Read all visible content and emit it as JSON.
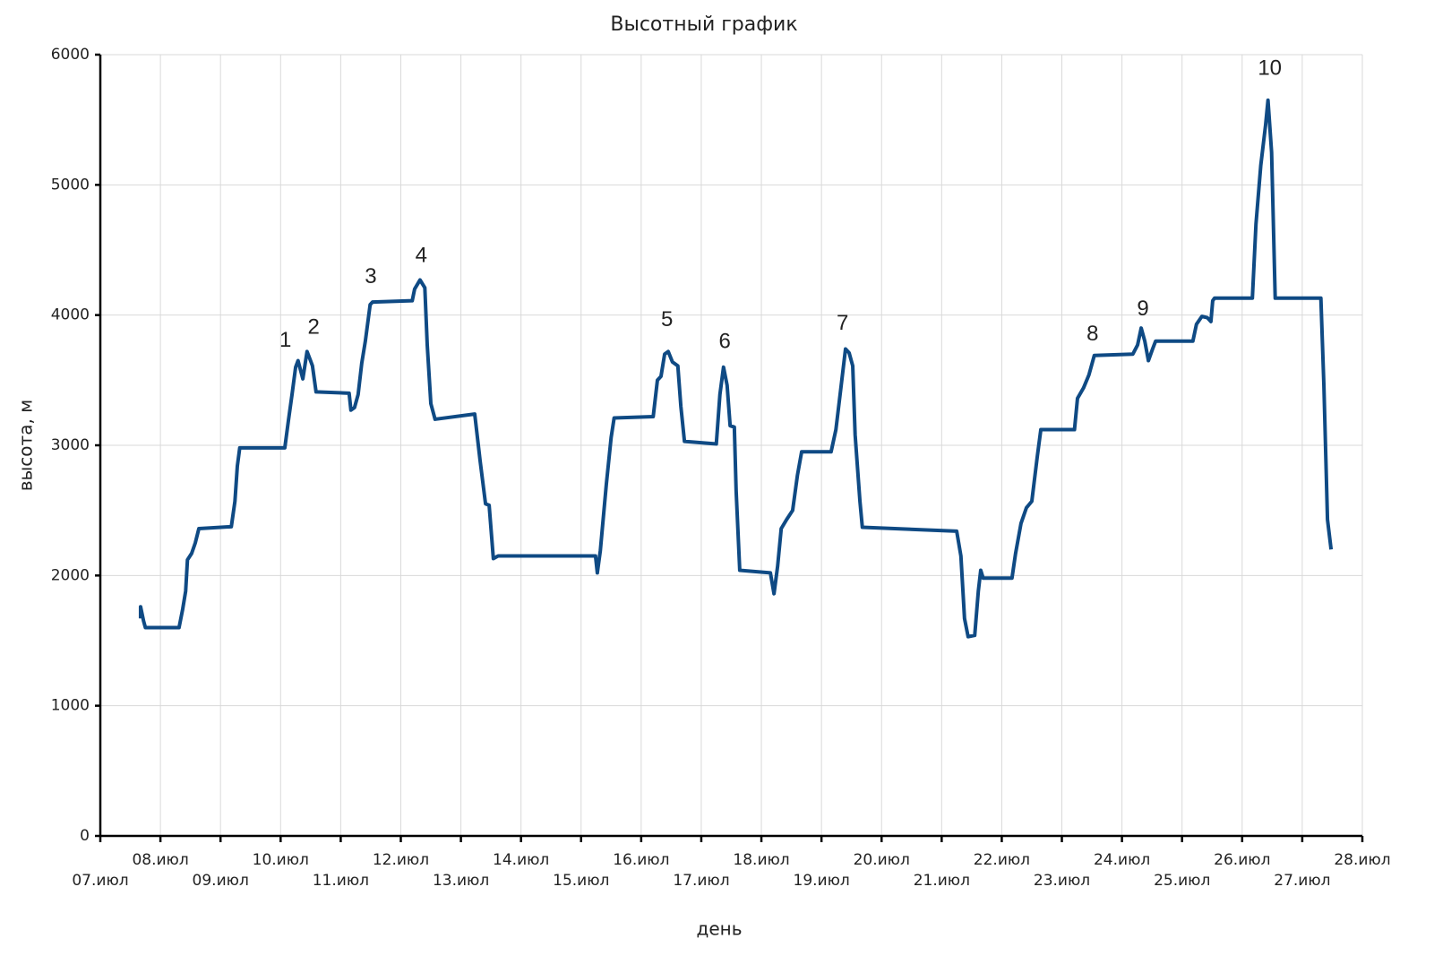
{
  "chart_data": {
    "type": "line",
    "title": "Высотный график",
    "x_label": "день",
    "y_label": "высота, м",
    "x": [
      7.67,
      7.67,
      7.72,
      7.75,
      8.31,
      8.37,
      8.42,
      8.45,
      8.52,
      8.58,
      8.64,
      9.18,
      9.24,
      9.28,
      9.32,
      10.07,
      10.13,
      10.19,
      10.25,
      10.29,
      10.37,
      10.44,
      10.49,
      10.53,
      10.59,
      11.14,
      11.17,
      11.23,
      11.29,
      11.35,
      11.41,
      11.49,
      11.53,
      12.19,
      12.23,
      12.32,
      12.4,
      12.44,
      12.5,
      12.57,
      13.23,
      13.32,
      13.41,
      13.47,
      13.54,
      13.62,
      15.24,
      15.27,
      15.32,
      15.42,
      15.5,
      15.55,
      16.2,
      16.27,
      16.33,
      16.39,
      16.45,
      16.52,
      16.61,
      16.66,
      16.72,
      17.25,
      17.31,
      17.37,
      17.43,
      17.48,
      17.55,
      17.58,
      17.64,
      18.15,
      18.21,
      18.27,
      18.33,
      18.42,
      18.52,
      18.6,
      18.67,
      19.16,
      19.24,
      19.31,
      19.4,
      19.46,
      19.52,
      19.56,
      19.64,
      19.68,
      21.25,
      21.32,
      21.38,
      21.44,
      21.55,
      21.61,
      21.65,
      21.69,
      22.17,
      22.23,
      22.32,
      22.41,
      22.5,
      22.59,
      22.65,
      23.21,
      23.26,
      23.36,
      23.45,
      23.54,
      24.18,
      24.26,
      24.32,
      24.38,
      24.44,
      24.51,
      24.56,
      25.18,
      25.24,
      25.33,
      25.42,
      25.48,
      25.51,
      25.54,
      26.17,
      26.23,
      26.31,
      26.39,
      26.43,
      26.49,
      26.55,
      27.31,
      27.36,
      27.42,
      27.48
    ],
    "values": [
      1670,
      1760,
      1650,
      1600,
      1600,
      1740,
      1880,
      2120,
      2170,
      2250,
      2360,
      2375,
      2570,
      2840,
      2980,
      2980,
      3190,
      3390,
      3600,
      3650,
      3510,
      3720,
      3660,
      3610,
      3410,
      3400,
      3270,
      3290,
      3390,
      3630,
      3800,
      4080,
      4100,
      4110,
      4200,
      4270,
      4210,
      3770,
      3320,
      3200,
      3240,
      2880,
      2550,
      2540,
      2130,
      2150,
      2150,
      2020,
      2190,
      2700,
      3060,
      3210,
      3220,
      3500,
      3530,
      3700,
      3720,
      3640,
      3610,
      3300,
      3030,
      3010,
      3390,
      3600,
      3460,
      3150,
      3140,
      2650,
      2040,
      2020,
      1860,
      2070,
      2360,
      2430,
      2500,
      2770,
      2950,
      2950,
      3120,
      3390,
      3740,
      3710,
      3610,
      3080,
      2570,
      2370,
      2340,
      2150,
      1670,
      1530,
      1540,
      1880,
      2040,
      1980,
      1980,
      2170,
      2400,
      2520,
      2570,
      2910,
      3120,
      3120,
      3360,
      3440,
      3540,
      3690,
      3700,
      3770,
      3900,
      3800,
      3650,
      3740,
      3800,
      3800,
      3930,
      3990,
      3980,
      3950,
      4110,
      4130,
      4130,
      4700,
      5150,
      5460,
      5650,
      5250,
      4130,
      4130,
      3460,
      2430,
      2200
    ],
    "color": "#0f4a84",
    "xlim": [
      7,
      28
    ],
    "xticks": [
      {
        "value": 7,
        "label": "07.июл"
      },
      {
        "value": 8,
        "label": "08.июл"
      },
      {
        "value": 9,
        "label": "09.июл"
      },
      {
        "value": 10,
        "label": "10.июл"
      },
      {
        "value": 11,
        "label": "11.июл"
      },
      {
        "value": 12,
        "label": "12.июл"
      },
      {
        "value": 13,
        "label": "13.июл"
      },
      {
        "value": 14,
        "label": "14.июл"
      },
      {
        "value": 15,
        "label": "15.июл"
      },
      {
        "value": 16,
        "label": "16.июл"
      },
      {
        "value": 17,
        "label": "17.июл"
      },
      {
        "value": 18,
        "label": "18.июл"
      },
      {
        "value": 19,
        "label": "19.июл"
      },
      {
        "value": 20,
        "label": "20.июл"
      },
      {
        "value": 21,
        "label": "21.июл"
      },
      {
        "value": 22,
        "label": "22.июл"
      },
      {
        "value": 23,
        "label": "23.июл"
      },
      {
        "value": 24,
        "label": "24.июл"
      },
      {
        "value": 25,
        "label": "25.июл"
      },
      {
        "value": 26,
        "label": "26.июл"
      },
      {
        "value": 27,
        "label": "27.июл"
      },
      {
        "value": 28,
        "label": "28.июл"
      }
    ],
    "ylim": [
      0,
      6000
    ],
    "yticks": [
      0,
      1000,
      2000,
      3000,
      4000,
      5000,
      6000
    ],
    "grid": true,
    "annotations": [
      {
        "text": "1",
        "x": 10.08,
        "y": 3800
      },
      {
        "text": "2",
        "x": 10.55,
        "y": 3900
      },
      {
        "text": "3",
        "x": 11.5,
        "y": 4290
      },
      {
        "text": "4",
        "x": 12.34,
        "y": 4450
      },
      {
        "text": "5",
        "x": 16.43,
        "y": 3960
      },
      {
        "text": "6",
        "x": 17.39,
        "y": 3790
      },
      {
        "text": "7",
        "x": 19.35,
        "y": 3930
      },
      {
        "text": "8",
        "x": 23.51,
        "y": 3850
      },
      {
        "text": "9",
        "x": 24.35,
        "y": 4040
      },
      {
        "text": "10",
        "x": 26.46,
        "y": 5890
      }
    ]
  }
}
